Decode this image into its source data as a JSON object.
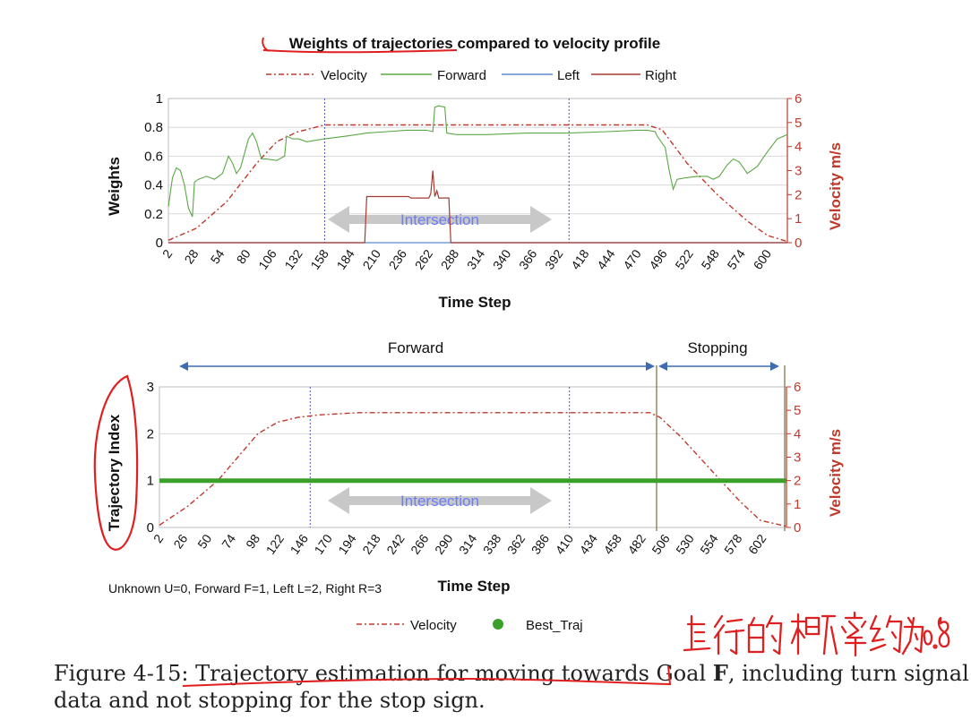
{
  "chart_data": [
    {
      "type": "line",
      "title": "Weights of trajectories compared to velocity profile",
      "xlabel": "Time Step",
      "ylabel": "Weights",
      "y2label": "Velocity m/s",
      "ylim": [
        0,
        1
      ],
      "y2lim": [
        0,
        6
      ],
      "yticks": [
        "0",
        "0.2",
        "0.4",
        "0.6",
        "0.8",
        "1"
      ],
      "y2ticks": [
        "0",
        "1",
        "2",
        "3",
        "4",
        "5",
        "6"
      ],
      "xticks": [
        "2",
        "28",
        "54",
        "80",
        "106",
        "132",
        "158",
        "184",
        "210",
        "236",
        "262",
        "288",
        "314",
        "340",
        "366",
        "392",
        "418",
        "444",
        "470",
        "496",
        "522",
        "548",
        "574",
        "600"
      ],
      "xlim": [
        2,
        620
      ],
      "legend": [
        {
          "name": "Velocity",
          "color": "#c0392b",
          "style": "dashdot"
        },
        {
          "name": "Forward",
          "color": "#5aa845",
          "style": "solid"
        },
        {
          "name": "Left",
          "color": "#5b8bd0",
          "style": "solid"
        },
        {
          "name": "Right",
          "color": "#a33b32",
          "style": "solid"
        }
      ],
      "annotation": "Intersection",
      "vlines": [
        158,
        402
      ],
      "series": [
        {
          "name": "Velocity",
          "axis": "y2",
          "x": [
            2,
            30,
            60,
            90,
            110,
            130,
            158,
            200,
            300,
            400,
            480,
            495,
            520,
            550,
            580,
            600,
            620
          ],
          "values": [
            0.1,
            0.6,
            1.7,
            3.3,
            4.2,
            4.6,
            4.9,
            4.9,
            4.9,
            4.9,
            4.9,
            4.7,
            3.3,
            2.0,
            0.9,
            0.3,
            0.05
          ]
        },
        {
          "name": "Forward",
          "axis": "y",
          "x": [
            2,
            6,
            10,
            14,
            18,
            22,
            26,
            28,
            32,
            40,
            48,
            56,
            62,
            66,
            70,
            74,
            78,
            82,
            86,
            90,
            94,
            96,
            100,
            110,
            118,
            120,
            126,
            132,
            140,
            158,
            180,
            200,
            220,
            240,
            260,
            266,
            268,
            272,
            278,
            280,
            290,
            320,
            360,
            400,
            440,
            470,
            480,
            488,
            490,
            494,
            498,
            500,
            502,
            506,
            510,
            518,
            530,
            540,
            546,
            552,
            560,
            566,
            572,
            580,
            590,
            600,
            610,
            620
          ],
          "values": [
            0.25,
            0.45,
            0.52,
            0.5,
            0.4,
            0.24,
            0.18,
            0.42,
            0.44,
            0.46,
            0.44,
            0.48,
            0.6,
            0.55,
            0.48,
            0.52,
            0.62,
            0.72,
            0.76,
            0.7,
            0.6,
            0.58,
            0.58,
            0.57,
            0.6,
            0.74,
            0.72,
            0.72,
            0.7,
            0.72,
            0.74,
            0.76,
            0.77,
            0.78,
            0.78,
            0.77,
            0.94,
            0.95,
            0.94,
            0.76,
            0.75,
            0.75,
            0.76,
            0.76,
            0.77,
            0.78,
            0.78,
            0.77,
            0.74,
            0.7,
            0.66,
            0.58,
            0.5,
            0.37,
            0.44,
            0.45,
            0.46,
            0.46,
            0.44,
            0.46,
            0.54,
            0.58,
            0.56,
            0.48,
            0.53,
            0.63,
            0.72,
            0.75
          ]
        },
        {
          "name": "Left",
          "axis": "y",
          "x": [
            2,
            620
          ],
          "values": [
            0,
            0
          ]
        },
        {
          "name": "Right",
          "axis": "y",
          "x": [
            2,
            198,
            200,
            242,
            244,
            262,
            264,
            266,
            268,
            270,
            272,
            276,
            282,
            284,
            286,
            620
          ],
          "values": [
            0,
            0,
            0.32,
            0.32,
            0.31,
            0.31,
            0.34,
            0.5,
            0.32,
            0.36,
            0.31,
            0.31,
            0.31,
            0,
            0,
            0
          ]
        }
      ]
    },
    {
      "type": "line",
      "title": "",
      "xlabel": "Time Step",
      "ylabel": "Trajectory Index",
      "y2label": "Velocity m/s",
      "ylim": [
        0,
        3
      ],
      "y2lim": [
        0,
        6
      ],
      "yticks": [
        "0",
        "1",
        "2",
        "3"
      ],
      "y2ticks": [
        "0",
        "1",
        "2",
        "3",
        "4",
        "5",
        "6"
      ],
      "xticks": [
        "2",
        "26",
        "50",
        "74",
        "98",
        "122",
        "146",
        "170",
        "194",
        "218",
        "242",
        "266",
        "290",
        "314",
        "338",
        "362",
        "386",
        "410",
        "434",
        "458",
        "482",
        "506",
        "530",
        "554",
        "578",
        "602"
      ],
      "xlim": [
        2,
        626
      ],
      "legend": [
        {
          "name": "Velocity",
          "color": "#c0392b",
          "style": "dashdot"
        },
        {
          "name": "Best_Traj",
          "color": "#3aa02a",
          "style": "marker"
        }
      ],
      "note": "Unknown U=0, Forward F=1, Left L=2, Right R=3",
      "annotation": "Intersection",
      "phases": [
        {
          "label": "Forward",
          "from": 2,
          "to": 498
        },
        {
          "label": "Stopping",
          "from": 502,
          "to": 626
        }
      ],
      "vlines": [
        152,
        410
      ],
      "series": [
        {
          "name": "Velocity",
          "axis": "y2",
          "x": [
            2,
            30,
            60,
            80,
            100,
            120,
            140,
            160,
            200,
            300,
            400,
            470,
            490,
            500,
            520,
            550,
            580,
            600,
            626
          ],
          "values": [
            0.1,
            0.9,
            2.0,
            3.0,
            4.0,
            4.5,
            4.7,
            4.8,
            4.9,
            4.9,
            4.9,
            4.9,
            4.9,
            4.7,
            3.9,
            2.5,
            1.1,
            0.3,
            0.05
          ]
        },
        {
          "name": "Best_Traj",
          "axis": "y",
          "x": [
            2,
            626
          ],
          "values": [
            1,
            1
          ]
        }
      ]
    }
  ],
  "caption": {
    "line1_prefix": "Figure 4-15: ",
    "line1_main": "Trajectory estimation for moving towards Goal ",
    "line1_bold": "F",
    "line1_rest": ", including turn signal",
    "line2": "data and not stopping for the stop sign."
  },
  "handwriting": "直行的概率约为0.8",
  "colors": {
    "axis_red": "#c0392b",
    "velocity": "#c0392b",
    "forward": "#5aa845",
    "left": "#5b8bd0",
    "right": "#a33b32",
    "best_traj": "#3aa02a",
    "intersection_text": "#6a7cff",
    "arrow_blue": "#3f6bb0",
    "annotation_red": "#e02020"
  }
}
